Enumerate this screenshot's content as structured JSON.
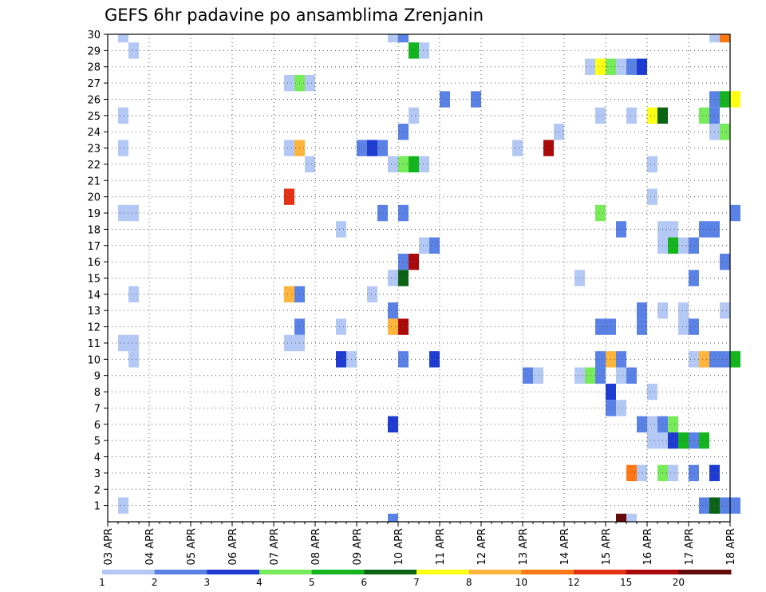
{
  "chart_data": {
    "type": "heatmap",
    "title": "GEFS 6hr padavine po ansamblima Zrenjanin",
    "x_labels": [
      "03 APR",
      "04 APR",
      "05 APR",
      "06 APR",
      "07 APR",
      "08 APR",
      "09 APR",
      "10 APR",
      "11 APR",
      "12 APR",
      "13 APR",
      "14 APR",
      "15 APR",
      "16 APR",
      "17 APR",
      "18 APR"
    ],
    "steps_per_day": 4,
    "y_members": [
      1,
      2,
      3,
      4,
      5,
      6,
      7,
      8,
      9,
      10,
      11,
      12,
      13,
      14,
      15,
      16,
      17,
      18,
      19,
      20,
      21,
      22,
      23,
      24,
      25,
      26,
      27,
      28,
      29,
      30
    ],
    "y_tick_labels": [
      "1",
      "2",
      "3",
      "4",
      "5",
      "6",
      "7",
      "8",
      "9",
      "10",
      "11",
      "12",
      "13",
      "14",
      "15",
      "16",
      "17",
      "18",
      "19",
      "20",
      "21",
      "22",
      "23",
      "24",
      "25",
      "26",
      "27",
      "28",
      "29",
      "30"
    ],
    "legend": {
      "ticks": [
        "1",
        "2",
        "3",
        "4",
        "5",
        "6",
        "7",
        "8",
        "10",
        "12",
        "15",
        "20"
      ],
      "colors": [
        "#b4c8f5",
        "#5a82e6",
        "#1e3cd2",
        "#78eb5a",
        "#14b41e",
        "#0a6414",
        "#ffff14",
        "#ffb43c",
        "#ff7814",
        "#e63214",
        "#aa0a0a",
        "#640a0a"
      ]
    },
    "cells": [
      {
        "m": 30,
        "s": 1,
        "c": 0
      },
      {
        "m": 30,
        "s": 27,
        "c": 0
      },
      {
        "m": 30,
        "s": 28,
        "c": 1
      },
      {
        "m": 30,
        "s": 58,
        "c": 0
      },
      {
        "m": 30,
        "s": 59,
        "c": 8
      },
      {
        "m": 29,
        "s": 2,
        "c": 0
      },
      {
        "m": 29,
        "s": 29,
        "c": 4
      },
      {
        "m": 29,
        "s": 30,
        "c": 0
      },
      {
        "m": 28,
        "s": 46,
        "c": 0
      },
      {
        "m": 28,
        "s": 47,
        "c": 6
      },
      {
        "m": 28,
        "s": 48,
        "c": 3
      },
      {
        "m": 28,
        "s": 49,
        "c": 0
      },
      {
        "m": 28,
        "s": 50,
        "c": 1
      },
      {
        "m": 28,
        "s": 51,
        "c": 2
      },
      {
        "m": 27,
        "s": 17,
        "c": 0
      },
      {
        "m": 27,
        "s": 18,
        "c": 3
      },
      {
        "m": 27,
        "s": 19,
        "c": 0
      },
      {
        "m": 26,
        "s": 32,
        "c": 1
      },
      {
        "m": 26,
        "s": 35,
        "c": 1
      },
      {
        "m": 26,
        "s": 58,
        "c": 1
      },
      {
        "m": 26,
        "s": 59,
        "c": 4
      },
      {
        "m": 26,
        "s": 60,
        "c": 6
      },
      {
        "m": 25,
        "s": 1,
        "c": 0
      },
      {
        "m": 25,
        "s": 29,
        "c": 0
      },
      {
        "m": 25,
        "s": 47,
        "c": 0
      },
      {
        "m": 25,
        "s": 50,
        "c": 0
      },
      {
        "m": 25,
        "s": 52,
        "c": 6
      },
      {
        "m": 25,
        "s": 53,
        "c": 5
      },
      {
        "m": 25,
        "s": 57,
        "c": 3
      },
      {
        "m": 25,
        "s": 58,
        "c": 1
      },
      {
        "m": 24,
        "s": 28,
        "c": 1
      },
      {
        "m": 24,
        "s": 43,
        "c": 0
      },
      {
        "m": 24,
        "s": 58,
        "c": 0
      },
      {
        "m": 24,
        "s": 59,
        "c": 3
      },
      {
        "m": 23,
        "s": 1,
        "c": 0
      },
      {
        "m": 23,
        "s": 17,
        "c": 0
      },
      {
        "m": 23,
        "s": 18,
        "c": 7
      },
      {
        "m": 23,
        "s": 24,
        "c": 1
      },
      {
        "m": 23,
        "s": 25,
        "c": 2
      },
      {
        "m": 23,
        "s": 26,
        "c": 1
      },
      {
        "m": 23,
        "s": 39,
        "c": 0
      },
      {
        "m": 23,
        "s": 42,
        "c": 10
      },
      {
        "m": 22,
        "s": 19,
        "c": 0
      },
      {
        "m": 22,
        "s": 27,
        "c": 0
      },
      {
        "m": 22,
        "s": 28,
        "c": 3
      },
      {
        "m": 22,
        "s": 29,
        "c": 4
      },
      {
        "m": 22,
        "s": 30,
        "c": 0
      },
      {
        "m": 22,
        "s": 52,
        "c": 0
      },
      {
        "m": 20,
        "s": 17,
        "c": 9
      },
      {
        "m": 20,
        "s": 52,
        "c": 0
      },
      {
        "m": 19,
        "s": 1,
        "c": 0
      },
      {
        "m": 19,
        "s": 2,
        "c": 0
      },
      {
        "m": 19,
        "s": 26,
        "c": 1
      },
      {
        "m": 19,
        "s": 28,
        "c": 1
      },
      {
        "m": 19,
        "s": 47,
        "c": 3
      },
      {
        "m": 19,
        "s": 60,
        "c": 1
      },
      {
        "m": 18,
        "s": 22,
        "c": 0
      },
      {
        "m": 18,
        "s": 49,
        "c": 1
      },
      {
        "m": 18,
        "s": 53,
        "c": 0
      },
      {
        "m": 18,
        "s": 54,
        "c": 0
      },
      {
        "m": 18,
        "s": 57,
        "c": 1
      },
      {
        "m": 18,
        "s": 58,
        "c": 1
      },
      {
        "m": 17,
        "s": 30,
        "c": 0
      },
      {
        "m": 17,
        "s": 31,
        "c": 1
      },
      {
        "m": 17,
        "s": 53,
        "c": 0
      },
      {
        "m": 17,
        "s": 54,
        "c": 4
      },
      {
        "m": 17,
        "s": 55,
        "c": 0
      },
      {
        "m": 17,
        "s": 56,
        "c": 1
      },
      {
        "m": 16,
        "s": 28,
        "c": 1
      },
      {
        "m": 16,
        "s": 29,
        "c": 10
      },
      {
        "m": 16,
        "s": 59,
        "c": 1
      },
      {
        "m": 15,
        "s": 27,
        "c": 0
      },
      {
        "m": 15,
        "s": 28,
        "c": 5
      },
      {
        "m": 15,
        "s": 45,
        "c": 0
      },
      {
        "m": 15,
        "s": 56,
        "c": 1
      },
      {
        "m": 14,
        "s": 2,
        "c": 0
      },
      {
        "m": 14,
        "s": 17,
        "c": 7
      },
      {
        "m": 14,
        "s": 18,
        "c": 1
      },
      {
        "m": 14,
        "s": 25,
        "c": 0
      },
      {
        "m": 13,
        "s": 27,
        "c": 1
      },
      {
        "m": 13,
        "s": 51,
        "c": 1
      },
      {
        "m": 13,
        "s": 53,
        "c": 0
      },
      {
        "m": 13,
        "s": 55,
        "c": 0
      },
      {
        "m": 13,
        "s": 59,
        "c": 0
      },
      {
        "m": 12,
        "s": 18,
        "c": 1
      },
      {
        "m": 12,
        "s": 22,
        "c": 0
      },
      {
        "m": 12,
        "s": 27,
        "c": 7
      },
      {
        "m": 12,
        "s": 28,
        "c": 10
      },
      {
        "m": 12,
        "s": 47,
        "c": 1
      },
      {
        "m": 12,
        "s": 48,
        "c": 1
      },
      {
        "m": 12,
        "s": 51,
        "c": 1
      },
      {
        "m": 12,
        "s": 55,
        "c": 0
      },
      {
        "m": 12,
        "s": 56,
        "c": 1
      },
      {
        "m": 11,
        "s": 1,
        "c": 0
      },
      {
        "m": 11,
        "s": 2,
        "c": 0
      },
      {
        "m": 11,
        "s": 17,
        "c": 0
      },
      {
        "m": 11,
        "s": 18,
        "c": 0
      },
      {
        "m": 10,
        "s": 2,
        "c": 0
      },
      {
        "m": 10,
        "s": 22,
        "c": 2
      },
      {
        "m": 10,
        "s": 23,
        "c": 0
      },
      {
        "m": 10,
        "s": 28,
        "c": 1
      },
      {
        "m": 10,
        "s": 31,
        "c": 2
      },
      {
        "m": 10,
        "s": 47,
        "c": 1
      },
      {
        "m": 10,
        "s": 48,
        "c": 7
      },
      {
        "m": 10,
        "s": 49,
        "c": 1
      },
      {
        "m": 10,
        "s": 56,
        "c": 0
      },
      {
        "m": 10,
        "s": 57,
        "c": 7
      },
      {
        "m": 10,
        "s": 58,
        "c": 1
      },
      {
        "m": 10,
        "s": 59,
        "c": 1
      },
      {
        "m": 10,
        "s": 60,
        "c": 4
      },
      {
        "m": 9,
        "s": 40,
        "c": 1
      },
      {
        "m": 9,
        "s": 41,
        "c": 0
      },
      {
        "m": 9,
        "s": 45,
        "c": 0
      },
      {
        "m": 9,
        "s": 46,
        "c": 3
      },
      {
        "m": 9,
        "s": 47,
        "c": 1
      },
      {
        "m": 9,
        "s": 49,
        "c": 0
      },
      {
        "m": 9,
        "s": 50,
        "c": 1
      },
      {
        "m": 8,
        "s": 48,
        "c": 2
      },
      {
        "m": 8,
        "s": 52,
        "c": 0
      },
      {
        "m": 7,
        "s": 48,
        "c": 1
      },
      {
        "m": 7,
        "s": 49,
        "c": 0
      },
      {
        "m": 6,
        "s": 27,
        "c": 2
      },
      {
        "m": 6,
        "s": 51,
        "c": 1
      },
      {
        "m": 6,
        "s": 52,
        "c": 0
      },
      {
        "m": 6,
        "s": 53,
        "c": 1
      },
      {
        "m": 6,
        "s": 54,
        "c": 3
      },
      {
        "m": 5,
        "s": 52,
        "c": 0
      },
      {
        "m": 5,
        "s": 53,
        "c": 0
      },
      {
        "m": 5,
        "s": 54,
        "c": 2
      },
      {
        "m": 5,
        "s": 55,
        "c": 4
      },
      {
        "m": 5,
        "s": 56,
        "c": 1
      },
      {
        "m": 5,
        "s": 57,
        "c": 4
      },
      {
        "m": 3,
        "s": 50,
        "c": 8
      },
      {
        "m": 3,
        "s": 51,
        "c": 0
      },
      {
        "m": 3,
        "s": 53,
        "c": 3
      },
      {
        "m": 3,
        "s": 54,
        "c": 0
      },
      {
        "m": 3,
        "s": 56,
        "c": 1
      },
      {
        "m": 3,
        "s": 58,
        "c": 2
      },
      {
        "m": 1,
        "s": 1,
        "c": 0
      },
      {
        "m": 1,
        "s": 57,
        "c": 1
      },
      {
        "m": 1,
        "s": 58,
        "c": 5
      },
      {
        "m": 1,
        "s": 59,
        "c": 1
      },
      {
        "m": 1,
        "s": 60,
        "c": 1
      },
      {
        "m": 0,
        "s": 27,
        "c": 1
      },
      {
        "m": 0,
        "s": 49,
        "c": 11
      },
      {
        "m": 0,
        "s": 50,
        "c": 0
      }
    ]
  }
}
